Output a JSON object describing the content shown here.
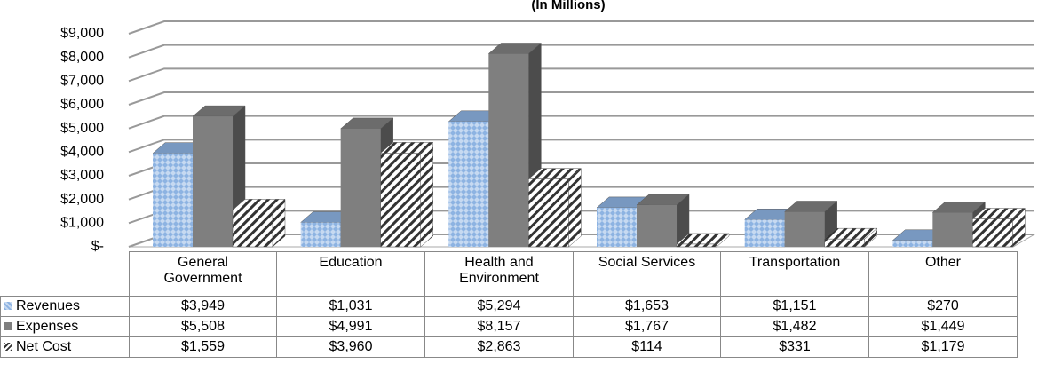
{
  "chart_data": {
    "type": "bar",
    "subtitle": "(In Millions)",
    "categories": [
      "General Government",
      "Education",
      "Health and Environment",
      "Social Services",
      "Transportation",
      "Other"
    ],
    "series": [
      {
        "name": "Revenues",
        "color": "#8db3e2",
        "values": [
          3949,
          1031,
          5294,
          1653,
          1151,
          270
        ],
        "value_labels": [
          "$3,949",
          "$1,031",
          "$5,294",
          "$1,653",
          "$1,151",
          "$270"
        ]
      },
      {
        "name": "Expenses",
        "color": "#7f7f7f",
        "values": [
          5508,
          4991,
          8157,
          1767,
          1482,
          1449
        ],
        "value_labels": [
          "$5,508",
          "$4,991",
          "$8,157",
          "$1,767",
          "$1,482",
          "$1,449"
        ]
      },
      {
        "name": "Net Cost",
        "color": "#ffffff",
        "values": [
          1559,
          3960,
          2863,
          114,
          331,
          1179
        ],
        "value_labels": [
          "$1,559",
          "$3,960",
          "$2,863",
          "$114",
          "$331",
          "$1,179"
        ]
      }
    ],
    "ylim": [
      0,
      9000
    ],
    "yticks": [
      {
        "value": 0,
        "label": "$-"
      },
      {
        "value": 1000,
        "label": "$1,000"
      },
      {
        "value": 2000,
        "label": "$2,000"
      },
      {
        "value": 3000,
        "label": "$3,000"
      },
      {
        "value": 4000,
        "label": "$4,000"
      },
      {
        "value": 5000,
        "label": "$5,000"
      },
      {
        "value": 6000,
        "label": "$6,000"
      },
      {
        "value": 7000,
        "label": "$7,000"
      },
      {
        "value": 8000,
        "label": "$8,000"
      },
      {
        "value": 9000,
        "label": "$9,000"
      }
    ],
    "grid": true
  }
}
